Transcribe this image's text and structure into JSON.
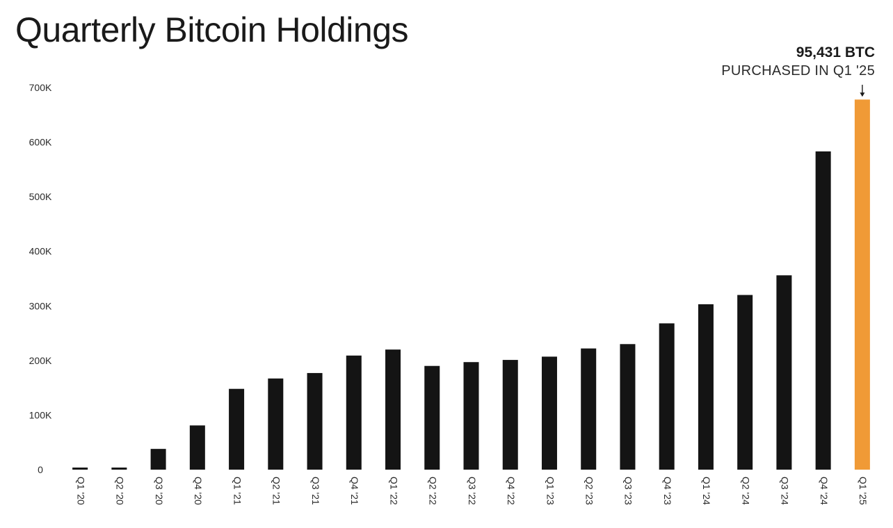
{
  "chart_data": {
    "type": "bar",
    "title": "Quarterly Bitcoin Holdings",
    "xlabel": "",
    "ylabel": "",
    "ylim": [
      0,
      700000
    ],
    "y_ticks": [
      0,
      100000,
      200000,
      300000,
      400000,
      500000,
      600000,
      700000
    ],
    "y_tick_labels": [
      "0",
      "100K",
      "200K",
      "300K",
      "400K",
      "500K",
      "600K",
      "700K"
    ],
    "grid": false,
    "categories": [
      "Q1 '20",
      "Q2 '20",
      "Q3 '20",
      "Q4 '20",
      "Q1 '21",
      "Q2 '21",
      "Q3 '21",
      "Q4 '21",
      "Q1 '22",
      "Q2 '22",
      "Q3 '22",
      "Q4 '22",
      "Q1 '23",
      "Q2 '23",
      "Q3 '23",
      "Q4 '23",
      "Q1 '24",
      "Q2 '24",
      "Q3 '24",
      "Q4 '24",
      "Q1 '25"
    ],
    "values": [
      0,
      0,
      38000,
      81000,
      148000,
      167000,
      177000,
      209000,
      220000,
      190000,
      197000,
      201000,
      207000,
      222000,
      230000,
      268000,
      303000,
      320000,
      356000,
      583000,
      678000
    ],
    "bar_colors": [
      "#141414",
      "#141414",
      "#141414",
      "#141414",
      "#141414",
      "#141414",
      "#141414",
      "#141414",
      "#141414",
      "#141414",
      "#141414",
      "#141414",
      "#141414",
      "#141414",
      "#141414",
      "#141414",
      "#141414",
      "#141414",
      "#141414",
      "#141414",
      "#F09A36"
    ],
    "annotation": {
      "amount": "95,431 BTC",
      "label": "PURCHASED IN Q1 '25",
      "target_category": "Q1 '25"
    }
  },
  "colors": {
    "bar": "#141414",
    "highlight": "#F09A36",
    "text": "#1a1a1a",
    "background": "#ffffff"
  }
}
